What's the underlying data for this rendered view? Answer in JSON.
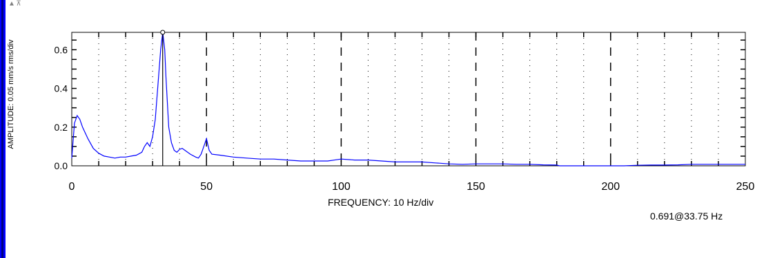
{
  "toolbar": {
    "icons": [
      "expand-up-icon",
      "expand-top-icon"
    ]
  },
  "readout": "0.691@33.75 Hz",
  "chart_data": {
    "type": "line",
    "xlabel": "FREQUENCY: 10 Hz/div",
    "ylabel": "AMPLITUDE: 0.05 mm/s rms/div",
    "xlim": [
      0,
      250
    ],
    "ylim": [
      0,
      0.69
    ],
    "xticks": [
      0,
      50,
      100,
      150,
      200,
      250
    ],
    "yticks": [
      0.0,
      0.2,
      0.4,
      0.6
    ],
    "xtick_labels": [
      "0",
      "50",
      "100",
      "150",
      "200",
      "250"
    ],
    "ytick_labels": [
      "0.0",
      "0.2",
      "0.4",
      "0.6"
    ],
    "grid": "minor dotted every 10 Hz, major dashed every 50 Hz",
    "line_color": "#0000ff",
    "cursor": {
      "x": 33.75,
      "y": 0.691
    },
    "series": [
      {
        "x": [
          0,
          1,
          2,
          3,
          4,
          6,
          8,
          10,
          12,
          14,
          16,
          18,
          20,
          22,
          24,
          26,
          27,
          28,
          29,
          30,
          31,
          32,
          33,
          33.75,
          34.5,
          35,
          36,
          37,
          38,
          39,
          40,
          41,
          42,
          44,
          46,
          47,
          48,
          49,
          50,
          51,
          52,
          55,
          60,
          65,
          70,
          75,
          80,
          85,
          90,
          95,
          100,
          105,
          110,
          115,
          120,
          125,
          130,
          135,
          140,
          145,
          150,
          155,
          160,
          165,
          170,
          175,
          180,
          181,
          185,
          190,
          195,
          200,
          205,
          210,
          215,
          220,
          225,
          230,
          235,
          240,
          245,
          250
        ],
        "y": [
          0.04,
          0.22,
          0.26,
          0.24,
          0.2,
          0.14,
          0.09,
          0.065,
          0.05,
          0.045,
          0.04,
          0.045,
          0.045,
          0.05,
          0.055,
          0.07,
          0.1,
          0.12,
          0.1,
          0.15,
          0.24,
          0.42,
          0.6,
          0.691,
          0.6,
          0.45,
          0.2,
          0.12,
          0.08,
          0.07,
          0.085,
          0.09,
          0.08,
          0.06,
          0.045,
          0.04,
          0.06,
          0.1,
          0.14,
          0.08,
          0.06,
          0.055,
          0.045,
          0.04,
          0.035,
          0.035,
          0.03,
          0.025,
          0.025,
          0.025,
          0.035,
          0.03,
          0.03,
          0.025,
          0.02,
          0.02,
          0.02,
          0.015,
          0.01,
          0.008,
          0.01,
          0.01,
          0.01,
          0.008,
          0.008,
          0.005,
          0.004,
          0.0,
          0.0,
          0.0,
          0.0,
          0.0,
          0.0,
          0.003,
          0.004,
          0.004,
          0.005,
          0.008,
          0.008,
          0.008,
          0.008,
          0.008
        ]
      }
    ]
  }
}
